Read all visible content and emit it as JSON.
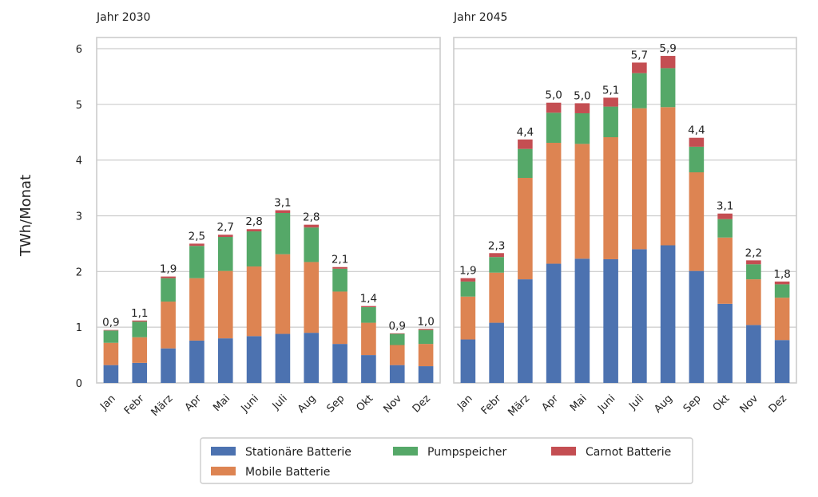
{
  "chart_data": {
    "type": "bar",
    "stacked": true,
    "ylabel": "TWh/Monat",
    "ylim": [
      0,
      6.2
    ],
    "yticks": [
      "0",
      "1",
      "2",
      "3",
      "4",
      "5",
      "6"
    ],
    "grid": true,
    "legend_position": "bottom-center",
    "categories": [
      "Jan",
      "Febr",
      "März",
      "Apr",
      "Mai",
      "Juni",
      "Juli",
      "Aug",
      "Sep",
      "Okt",
      "Nov",
      "Dez"
    ],
    "series_styles": [
      {
        "name": "Stationäre Batterie",
        "color": "#4c72b0"
      },
      {
        "name": "Mobile Batterie",
        "color": "#dd8452"
      },
      {
        "name": "Pumpspeicher",
        "color": "#55a868"
      },
      {
        "name": "Carnot Batterie",
        "color": "#c44e52"
      }
    ],
    "panels": [
      {
        "title": "Jahr 2030",
        "totals_labels": [
          "0,9",
          "1,1",
          "1,9",
          "2,5",
          "2,7",
          "2,8",
          "3,1",
          "2,8",
          "2,1",
          "1,4",
          "0,9",
          "1,0"
        ],
        "series": [
          {
            "name": "Stationäre Batterie",
            "values": [
              0.32,
              0.36,
              0.62,
              0.76,
              0.8,
              0.84,
              0.88,
              0.9,
              0.7,
              0.5,
              0.32,
              0.3
            ]
          },
          {
            "name": "Mobile Batterie",
            "values": [
              0.4,
              0.46,
              0.84,
              1.12,
              1.21,
              1.25,
              1.43,
              1.27,
              0.94,
              0.58,
              0.36,
              0.4
            ]
          },
          {
            "name": "Pumpspeicher",
            "values": [
              0.22,
              0.28,
              0.42,
              0.58,
              0.61,
              0.63,
              0.74,
              0.62,
              0.41,
              0.28,
              0.2,
              0.25
            ]
          },
          {
            "name": "Carnot Batterie",
            "values": [
              0.01,
              0.02,
              0.03,
              0.04,
              0.04,
              0.04,
              0.05,
              0.05,
              0.03,
              0.02,
              0.01,
              0.02
            ]
          }
        ]
      },
      {
        "title": "Jahr 2045",
        "totals_labels": [
          "1,9",
          "2,3",
          "4,4",
          "5,0",
          "5,0",
          "5,1",
          "5,7",
          "5,9",
          "4,4",
          "3,1",
          "2,2",
          "1,8"
        ],
        "series": [
          {
            "name": "Stationäre Batterie",
            "values": [
              0.78,
              1.08,
              1.86,
              2.14,
              2.23,
              2.22,
              2.4,
              2.47,
              2.01,
              1.42,
              1.04,
              0.77
            ]
          },
          {
            "name": "Mobile Batterie",
            "values": [
              0.77,
              0.9,
              1.82,
              2.17,
              2.06,
              2.19,
              2.53,
              2.48,
              1.77,
              1.19,
              0.82,
              0.76
            ]
          },
          {
            "name": "Pumpspeicher",
            "values": [
              0.27,
              0.28,
              0.52,
              0.54,
              0.55,
              0.55,
              0.63,
              0.7,
              0.46,
              0.33,
              0.27,
              0.24
            ]
          },
          {
            "name": "Carnot Batterie",
            "values": [
              0.06,
              0.07,
              0.17,
              0.18,
              0.18,
              0.16,
              0.19,
              0.22,
              0.16,
              0.1,
              0.07,
              0.05
            ]
          }
        ]
      }
    ]
  }
}
